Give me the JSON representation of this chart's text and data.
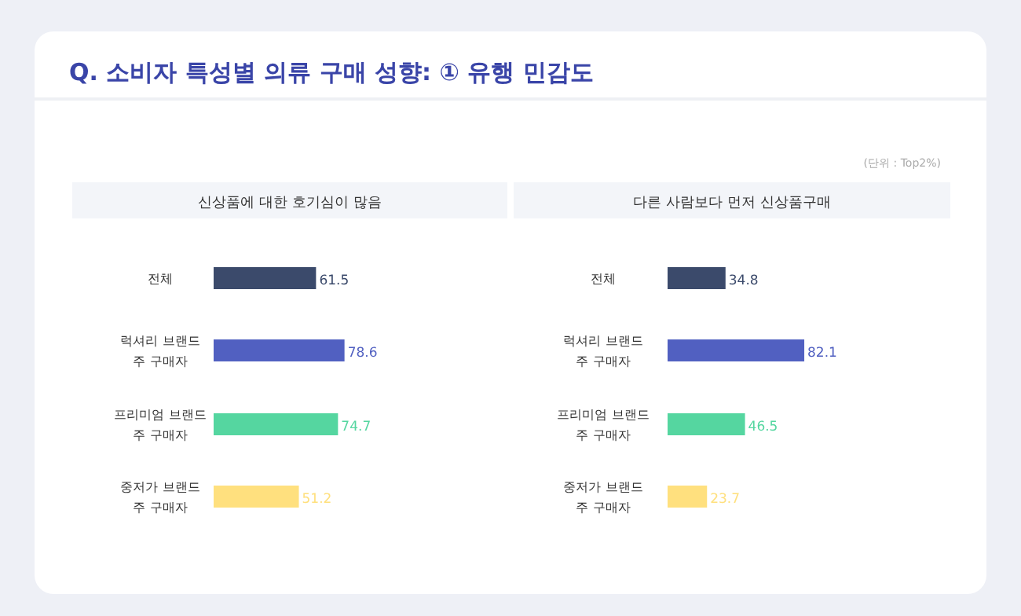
{
  "chart_data": [
    {
      "type": "bar",
      "orientation": "horizontal",
      "title": "Q. 소비자 특성별 의류 구매 성향: ① 유행 민감도",
      "subtitle": "신상품에 대한 호기심이 많음",
      "categories": [
        "전체",
        "럭셔리 브랜드\n주 구매자",
        "프리미엄 브랜드\n주 구매자",
        "중저가 브랜드\n주 구매자"
      ],
      "values": [
        61.5,
        78.6,
        74.7,
        51.2
      ],
      "colors": [
        "#3b4a6b",
        "#5160c1",
        "#55d6a0",
        "#ffe07e"
      ],
      "data_labels": true
    },
    {
      "type": "bar",
      "orientation": "horizontal",
      "subtitle": "다른 사람보다 먼저 신상품구매",
      "annotations": [
        "(단위 : Top2%)"
      ],
      "categories": [
        "전체",
        "럭셔리 브랜드\n주 구매자",
        "프리미엄 브랜드\n주 구매자",
        "중저가 브랜드\n주 구매자"
      ],
      "values": [
        34.8,
        82.1,
        46.5,
        23.7
      ],
      "colors": [
        "#3b4a6b",
        "#5160c1",
        "#55d6a0",
        "#ffe07e"
      ],
      "data_labels": true
    }
  ]
}
